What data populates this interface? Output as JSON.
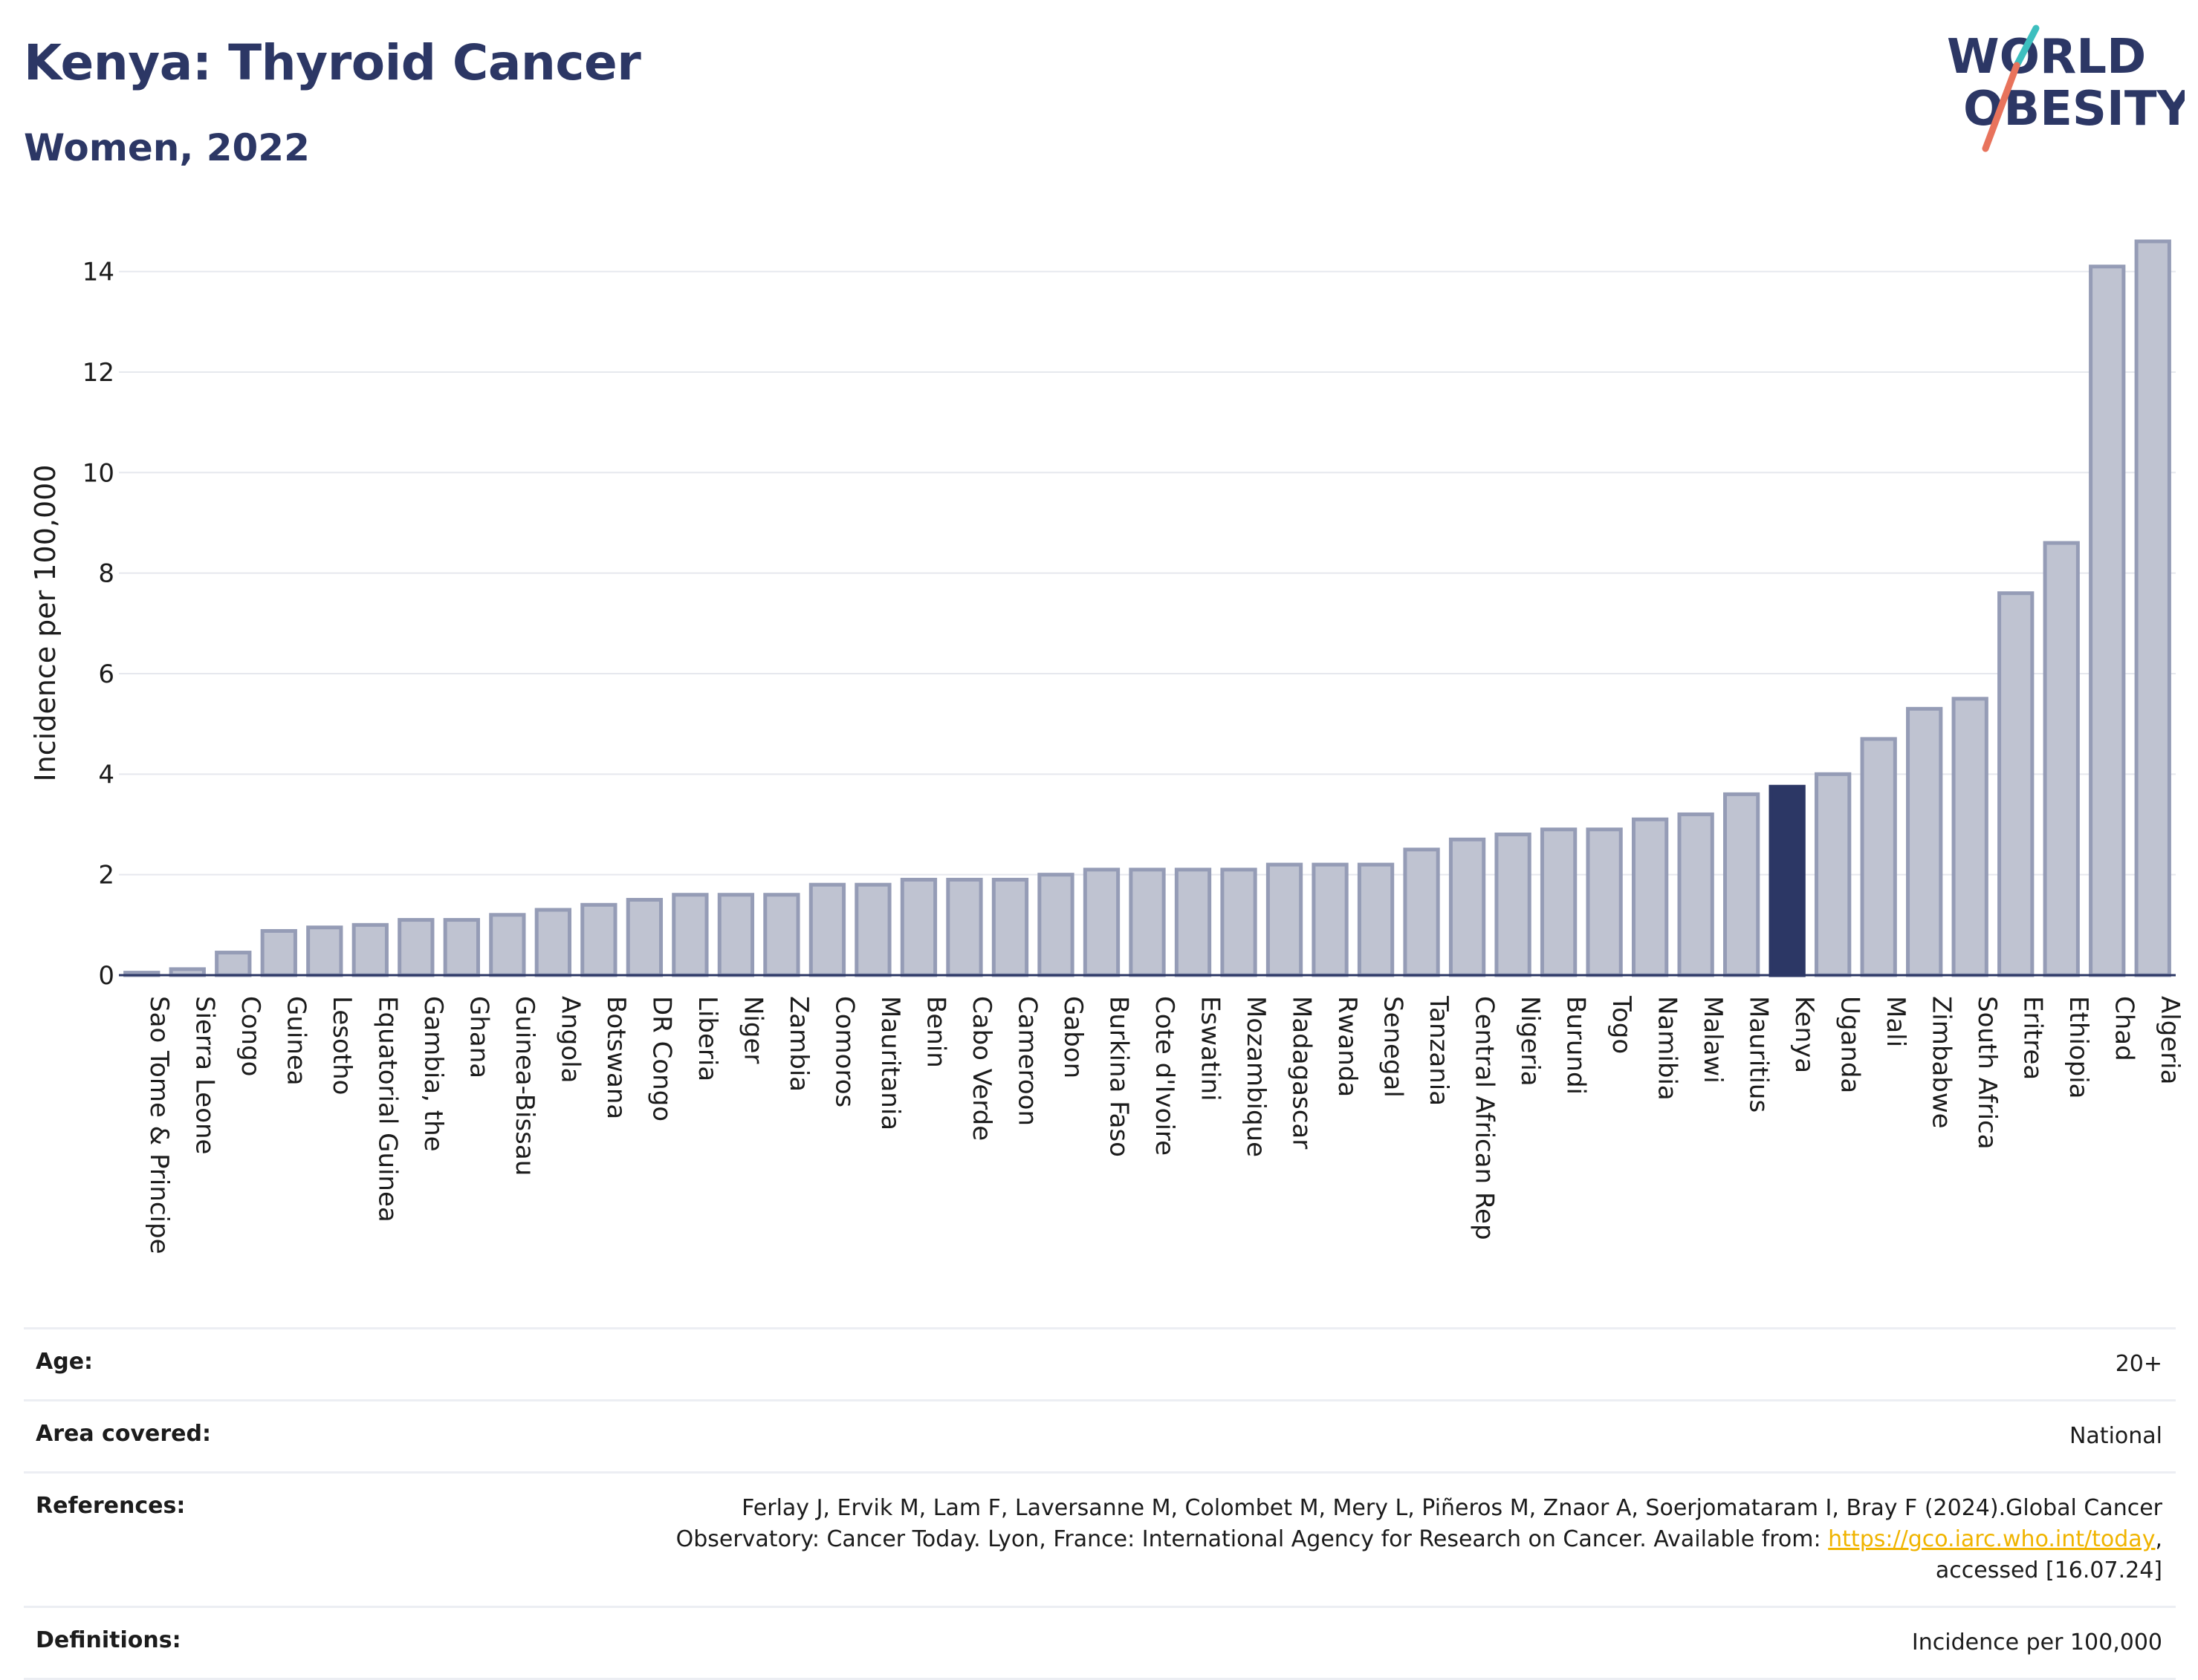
{
  "header": {
    "title": "Kenya: Thyroid Cancer",
    "subtitle": "Women, 2022"
  },
  "logo": {
    "line1": "WORLD",
    "line2": "OBESITY",
    "accent_colors": [
      "#3dbfbf",
      "#e8735c"
    ]
  },
  "chart_data": {
    "type": "bar",
    "title": "Kenya: Thyroid Cancer",
    "subtitle": "Women, 2022",
    "ylabel": "Incidence per 100,000",
    "xlabel": "",
    "ylim": [
      0,
      14.6
    ],
    "yticks": [
      0,
      2,
      4,
      6,
      8,
      10,
      12,
      14
    ],
    "grid": true,
    "highlight": "Kenya",
    "colors": {
      "bar": "#bfc3d1",
      "bar_edge": "#959cb6",
      "highlight": "#2c3765"
    },
    "categories": [
      "Sao Tome & Principe",
      "Sierra Leone",
      "Congo",
      "Guinea",
      "Lesotho",
      "Equatorial Guinea",
      "Gambia, the",
      "Ghana",
      "Guinea-Bissau",
      "Angola",
      "Botswana",
      "DR Congo",
      "Liberia",
      "Niger",
      "Zambia",
      "Comoros",
      "Mauritania",
      "Benin",
      "Cabo Verde",
      "Cameroon",
      "Gabon",
      "Burkina Faso",
      "Cote d'Ivoire",
      "Eswatini",
      "Mozambique",
      "Madagascar",
      "Rwanda",
      "Senegal",
      "Tanzania",
      "Central African Rep",
      "Nigeria",
      "Burundi",
      "Togo",
      "Namibia",
      "Malawi",
      "Mauritius",
      "Kenya",
      "Uganda",
      "Mali",
      "Zimbabwe",
      "South Africa",
      "Eritrea",
      "Ethiopia",
      "Chad",
      "Algeria"
    ],
    "values": [
      0.05,
      0.12,
      0.45,
      0.88,
      0.95,
      1.0,
      1.1,
      1.1,
      1.2,
      1.3,
      1.4,
      1.5,
      1.6,
      1.6,
      1.6,
      1.8,
      1.8,
      1.9,
      1.9,
      1.9,
      2.0,
      2.1,
      2.1,
      2.1,
      2.1,
      2.2,
      2.2,
      2.2,
      2.5,
      2.7,
      2.8,
      2.9,
      2.9,
      3.1,
      3.2,
      3.6,
      3.75,
      4.0,
      4.7,
      5.3,
      5.5,
      7.6,
      8.6,
      14.1,
      14.6
    ]
  },
  "info": {
    "age_label": "Age:",
    "age_value": "20+",
    "area_label": "Area covered:",
    "area_value": "National",
    "references_label": "References:",
    "references_text": "Ferlay J, Ervik M, Lam F, Laversanne M, Colombet M, Mery L, Piñeros M, Znaor A, Soerjomataram I, Bray F (2024).Global Cancer Observatory: Cancer Today. Lyon, France: International Agency for Research on Cancer. Available from: ",
    "references_link": "https://gco.iarc.who.int/today",
    "references_tail": ", accessed [16.07.24]",
    "definitions_label": "Definitions:",
    "definitions_value": "Incidence per 100,000"
  }
}
